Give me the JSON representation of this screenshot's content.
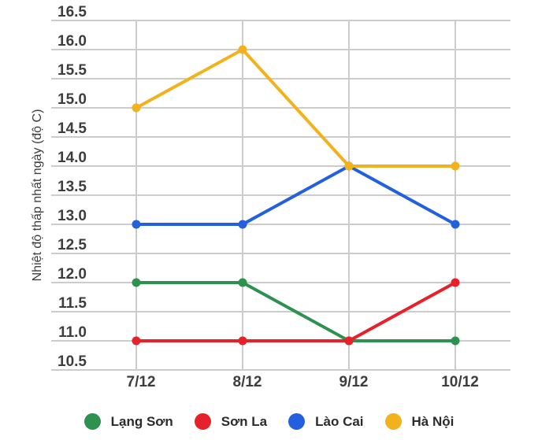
{
  "chart_data": {
    "type": "line",
    "title": "",
    "xlabel": "",
    "ylabel": "Nhiệt độ thấp nhất ngày (độ C)",
    "categories": [
      "7/12",
      "8/12",
      "9/12",
      "10/12"
    ],
    "series": [
      {
        "name": "Lạng Sơn",
        "color": "#2E9150",
        "values": [
          12.0,
          12.0,
          11.0,
          11.0
        ]
      },
      {
        "name": "Sơn La",
        "color": "#E6212A",
        "values": [
          11.0,
          11.0,
          11.0,
          12.0
        ]
      },
      {
        "name": "Lào Cai",
        "color": "#2360DF",
        "values": [
          13.0,
          13.0,
          14.0,
          13.0
        ]
      },
      {
        "name": "Hà Nội",
        "color": "#F2B21D",
        "values": [
          15.0,
          16.0,
          14.0,
          14.0
        ]
      }
    ],
    "ylim": [
      10.5,
      16.5
    ],
    "ytick_step": 0.5,
    "ytick_decimals": 1,
    "grid": true,
    "legend_position": "bottom"
  },
  "style": {
    "background": "#FFFFFF",
    "gridline_color": "#CCCCCC",
    "tick_label_color": "#3D3D3D",
    "axis_title_color": "#3D3D3D",
    "legend_label_color": "#2B2B2B"
  }
}
